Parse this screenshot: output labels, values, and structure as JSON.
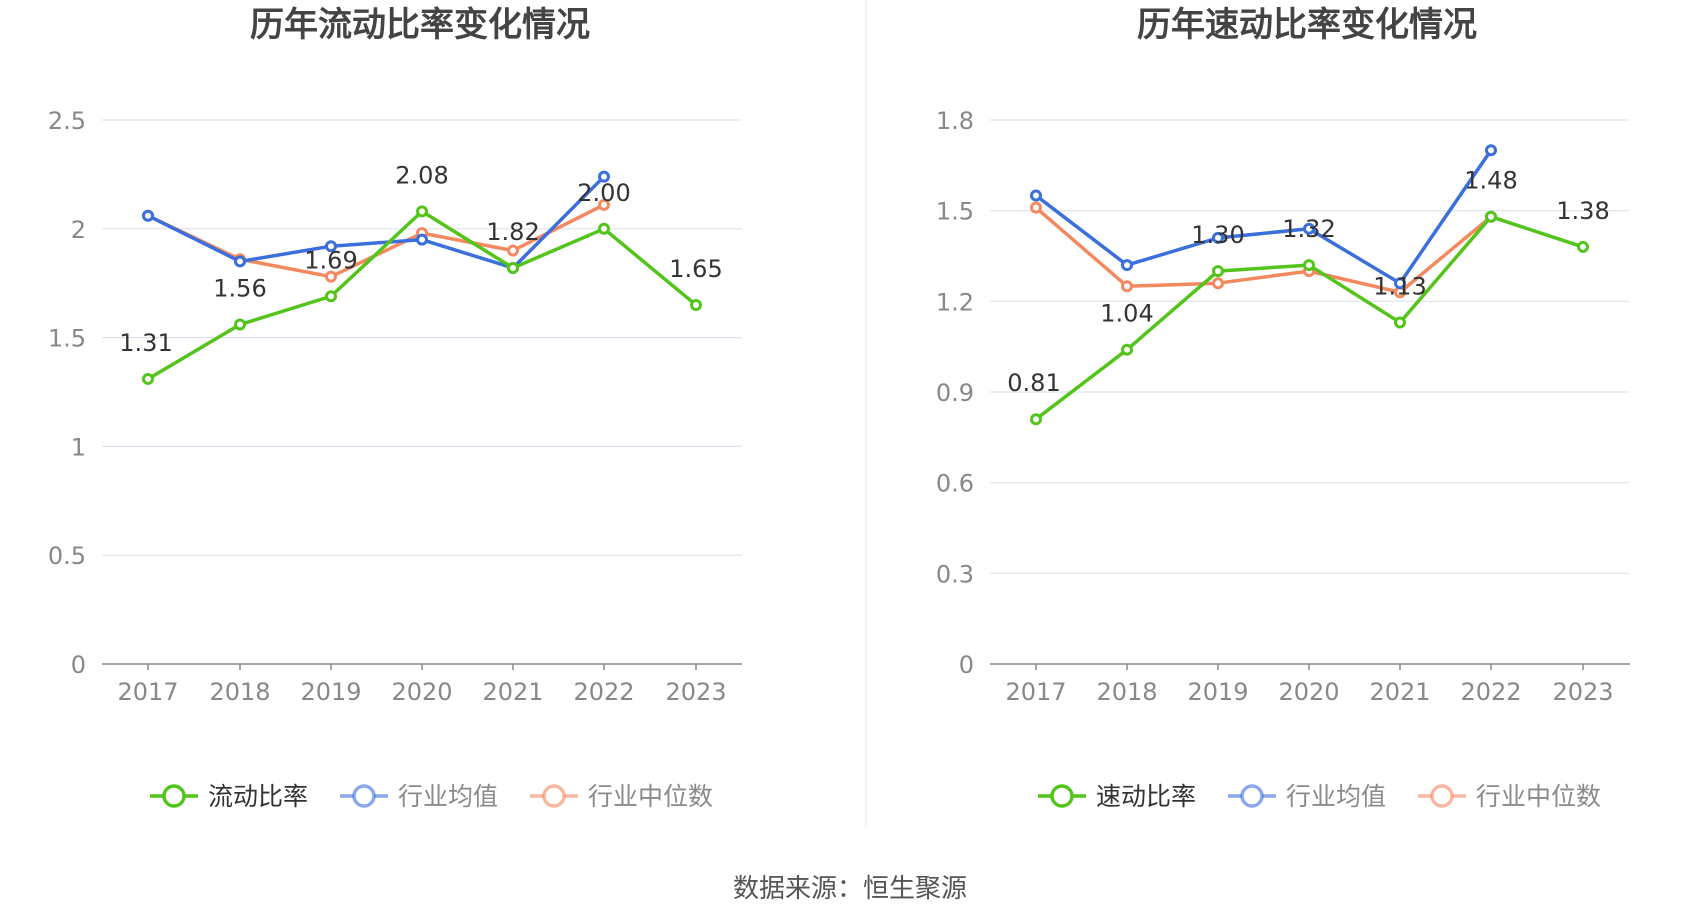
{
  "source": "数据来源：恒生聚源",
  "colors": {
    "company": "#52c41a",
    "avg": "#3a6fdd",
    "median": "#f4895f",
    "grid": "#dde3ee",
    "axis": "#888888",
    "tick": "#888888",
    "title": "#444444",
    "label": "#333333"
  },
  "chart_data": [
    {
      "type": "line",
      "title": "历年流动比率变化情况",
      "x": [
        "2017",
        "2018",
        "2019",
        "2020",
        "2021",
        "2022",
        "2023"
      ],
      "ylim": [
        0,
        2.5
      ],
      "yticks": [
        "0",
        "0.5",
        "1",
        "1.5",
        "2",
        "2.5"
      ],
      "ytick_values": [
        0,
        0.5,
        1,
        1.5,
        2,
        2.5
      ],
      "grid": true,
      "legend": "bottom",
      "series": [
        {
          "name": "流动比率",
          "key": "company",
          "values": [
            1.31,
            1.56,
            1.69,
            2.08,
            1.82,
            2.0,
            1.65
          ],
          "labels": [
            "1.31",
            "1.56",
            "1.69",
            "2.08",
            "1.82",
            "2.00",
            "1.65"
          ]
        },
        {
          "name": "行业均值",
          "key": "avg",
          "values": [
            2.06,
            1.85,
            1.92,
            1.95,
            1.82,
            2.24,
            null
          ]
        },
        {
          "name": "行业中位数",
          "key": "median",
          "values": [
            2.06,
            1.86,
            1.78,
            1.98,
            1.9,
            2.11,
            null
          ]
        }
      ]
    },
    {
      "type": "line",
      "title": "历年速动比率变化情况",
      "x": [
        "2017",
        "2018",
        "2019",
        "2020",
        "2021",
        "2022",
        "2023"
      ],
      "ylim": [
        0,
        1.8
      ],
      "yticks": [
        "0",
        "0.3",
        "0.6",
        "0.9",
        "1.2",
        "1.5",
        "1.8"
      ],
      "ytick_values": [
        0,
        0.3,
        0.6,
        0.9,
        1.2,
        1.5,
        1.8
      ],
      "grid": true,
      "legend": "bottom",
      "series": [
        {
          "name": "速动比率",
          "key": "company",
          "values": [
            0.81,
            1.04,
            1.3,
            1.32,
            1.13,
            1.48,
            1.38
          ],
          "labels": [
            "0.81",
            "1.04",
            "1.30",
            "1.32",
            "1.13",
            "1.48",
            "1.38"
          ]
        },
        {
          "name": "行业均值",
          "key": "avg",
          "values": [
            1.55,
            1.32,
            1.41,
            1.44,
            1.26,
            1.7,
            null
          ]
        },
        {
          "name": "行业中位数",
          "key": "median",
          "values": [
            1.51,
            1.25,
            1.26,
            1.3,
            1.23,
            1.48,
            null
          ]
        }
      ]
    }
  ]
}
